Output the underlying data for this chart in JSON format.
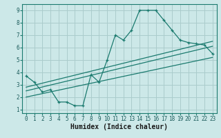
{
  "background_color": "#cce8e8",
  "grid_color": "#aacccc",
  "line_color": "#1a7a6e",
  "series1_x": [
    0,
    1,
    2,
    3,
    4,
    5,
    6,
    7,
    8,
    9,
    10,
    11,
    12,
    13,
    14,
    15,
    16,
    17,
    18,
    19,
    20,
    21,
    22,
    23
  ],
  "series1_y": [
    3.7,
    3.2,
    2.4,
    2.6,
    1.6,
    1.6,
    1.3,
    1.3,
    3.8,
    3.2,
    5.0,
    7.0,
    6.6,
    7.4,
    9.0,
    9.0,
    9.0,
    8.2,
    7.4,
    6.6,
    6.4,
    6.3,
    6.2,
    5.5
  ],
  "series2_x": [
    0,
    23
  ],
  "series2_y": [
    2.8,
    6.5
  ],
  "series3_x": [
    0,
    23
  ],
  "series3_y": [
    2.5,
    6.1
  ],
  "series4_x": [
    0,
    23
  ],
  "series4_y": [
    2.0,
    5.2
  ],
  "xlim": [
    -0.5,
    23.5
  ],
  "ylim": [
    0.7,
    9.5
  ],
  "xticks": [
    0,
    1,
    2,
    3,
    4,
    5,
    6,
    7,
    8,
    9,
    10,
    11,
    12,
    13,
    14,
    15,
    16,
    17,
    18,
    19,
    20,
    21,
    22,
    23
  ],
  "yticks": [
    1,
    2,
    3,
    4,
    5,
    6,
    7,
    8,
    9
  ],
  "xlabel": "Humidex (Indice chaleur)",
  "xlabel_fontsize": 7,
  "tick_fontsize": 5.5
}
